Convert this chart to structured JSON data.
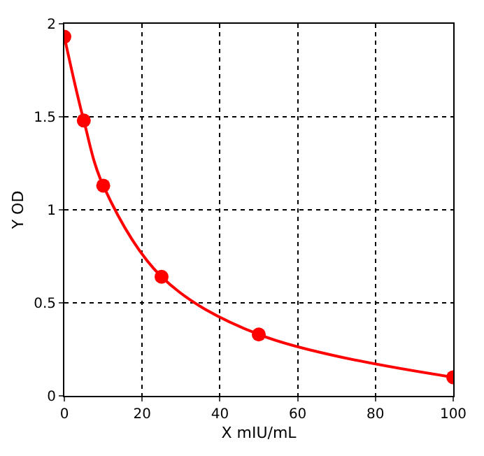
{
  "chart_data": {
    "type": "line",
    "xlabel": "X mIU/mL",
    "ylabel": "Y OD",
    "x": [
      0,
      5,
      10,
      25,
      50,
      100
    ],
    "series": [
      {
        "color": "#ff0000",
        "values": [
          1.93,
          1.48,
          1.13,
          0.64,
          0.33,
          0.1
        ]
      }
    ],
    "xlim": [
      0,
      100
    ],
    "xticks": [
      0,
      20,
      40,
      60,
      80,
      100
    ],
    "ylim": [
      0,
      2
    ],
    "yticks": [
      0,
      0.5,
      1,
      1.5,
      2
    ],
    "grid": true,
    "marker": "circle",
    "line_style": "solid"
  }
}
